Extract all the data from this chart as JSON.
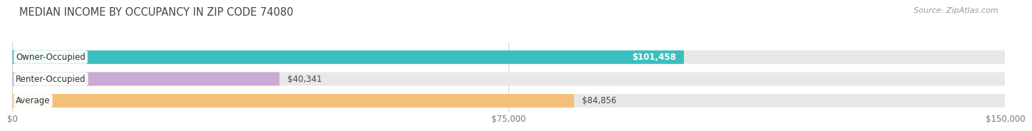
{
  "title": "MEDIAN INCOME BY OCCUPANCY IN ZIP CODE 74080",
  "source": "Source: ZipAtlas.com",
  "categories": [
    "Owner-Occupied",
    "Renter-Occupied",
    "Average"
  ],
  "values": [
    101458,
    40341,
    84856
  ],
  "labels": [
    "$101,458",
    "$40,341",
    "$84,856"
  ],
  "label_inside": [
    true,
    false,
    false
  ],
  "bar_colors": [
    "#3abfc0",
    "#c9aad4",
    "#f5bf7a"
  ],
  "xlim": [
    0,
    150000
  ],
  "xticks": [
    0,
    75000,
    150000
  ],
  "xticklabels": [
    "$0",
    "$75,000",
    "$150,000"
  ],
  "title_fontsize": 10.5,
  "source_fontsize": 8,
  "label_fontsize": 8.5,
  "category_fontsize": 8.5,
  "bar_bg_color": "#e8e8e8",
  "background_color": "#ffffff",
  "bar_sep_color": "#f0f0f0"
}
